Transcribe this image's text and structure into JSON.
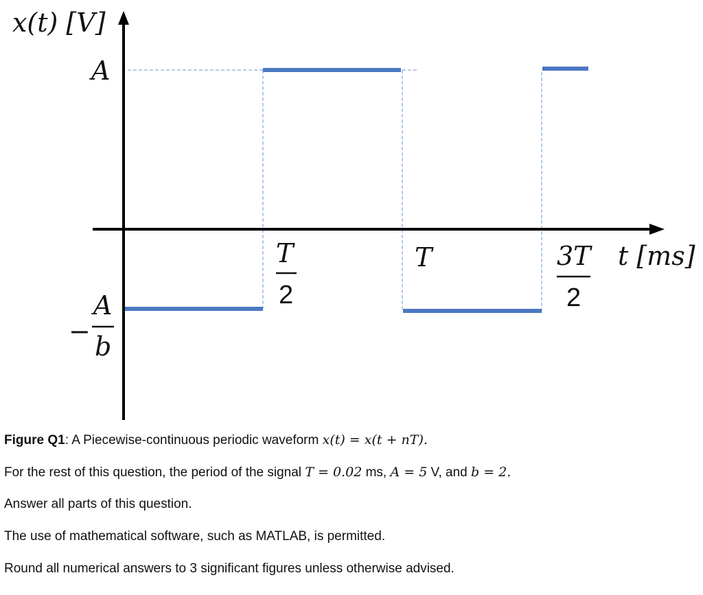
{
  "figure": {
    "y_axis_label": "x(t) [V]",
    "x_axis_label": "t [ms]",
    "y_tick_top": "A",
    "y_tick_bottom_minus": "−",
    "y_tick_bottom_num": "A",
    "y_tick_bottom_den": "b",
    "x_tick_half_num": "T",
    "x_tick_half_den": "2",
    "x_tick_T": "T",
    "x_tick_3half_num": "3T",
    "x_tick_3half_den": "2",
    "line_color": "#4a78c2",
    "guide_color": "#8aaee0"
  },
  "chart_data": {
    "type": "line",
    "title": "",
    "xlabel": "t [ms]",
    "ylabel": "x(t) [V]",
    "x_ticks": [
      "T/2",
      "T",
      "3T/2"
    ],
    "y_ticks": [
      "A",
      "-A/b"
    ],
    "segments": [
      {
        "t_start": "0",
        "t_end": "T/2",
        "level": "-A/b"
      },
      {
        "t_start": "T/2",
        "t_end": "T",
        "level": "A"
      },
      {
        "t_start": "T",
        "t_end": "3T/2",
        "level": "-A/b"
      },
      {
        "t_start": "3T/2",
        "t_end": "...",
        "level": "A"
      }
    ]
  },
  "caption": {
    "label": "Figure Q1",
    "label_sep": ":",
    "text": " A Piecewise-continuous periodic waveform ",
    "eq": "x(t) = x(t + nT).",
    "line2_a": "For the rest of this question, the period of the signal ",
    "line2_T": "T = 0.02",
    "line2_b": " ms, ",
    "line2_A": "A = 5",
    "line2_c": " V, and ",
    "line2_bv": "b = 2.",
    "line3": "Answer all parts of this question.",
    "line4": "The use of mathematical software, such as MATLAB, is permitted.",
    "line5": "Round all numerical answers to 3 significant figures unless otherwise advised."
  }
}
